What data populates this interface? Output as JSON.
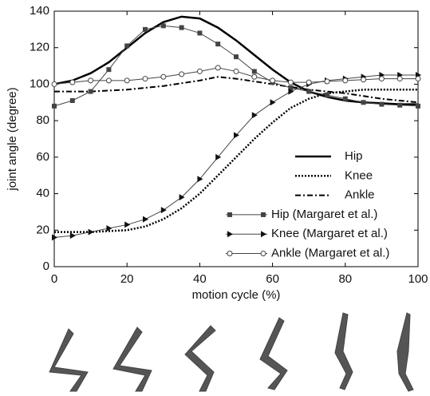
{
  "chart_data": {
    "type": "line",
    "xlabel": "motion cycle (%)",
    "ylabel": "joint angle (degree)",
    "x": [
      0,
      5,
      10,
      15,
      20,
      25,
      30,
      35,
      40,
      45,
      50,
      55,
      60,
      65,
      70,
      75,
      80,
      85,
      90,
      95,
      100
    ],
    "xlim": [
      0,
      100
    ],
    "xticks": [
      0,
      20,
      40,
      60,
      80,
      100
    ],
    "ylim": [
      0,
      140
    ],
    "yticks": [
      0,
      20,
      40,
      60,
      80,
      100,
      120,
      140
    ],
    "grid": false,
    "legend": "lower right",
    "series": [
      {
        "name": "Hip",
        "color": "#000000",
        "style": "solid",
        "width": 2.5,
        "marker": "none",
        "values": [
          100,
          102,
          106,
          112,
          120,
          128,
          134,
          137,
          136,
          131,
          124,
          116,
          108,
          101,
          96,
          93,
          91,
          90,
          89.5,
          89,
          89
        ]
      },
      {
        "name": "Knee",
        "color": "#000000",
        "style": "dotted",
        "width": 2.5,
        "marker": "none",
        "values": [
          19,
          19,
          19,
          19.5,
          20,
          22,
          26,
          32,
          40,
          50,
          60,
          70,
          79,
          87,
          92,
          95,
          96,
          97,
          97,
          97,
          97
        ]
      },
      {
        "name": "Ankle",
        "color": "#000000",
        "style": "dashdot",
        "width": 2,
        "marker": "none",
        "values": [
          96,
          96,
          96,
          96.5,
          97,
          98,
          99,
          100.5,
          102,
          104,
          103,
          101.5,
          100,
          98.5,
          97,
          96,
          95,
          93.5,
          92,
          91,
          90
        ]
      },
      {
        "name": "Hip (Margaret et al.)",
        "color": "#444444",
        "style": "solid",
        "width": 1,
        "marker": "square",
        "values": [
          88,
          91,
          96,
          108,
          121,
          130,
          132,
          131,
          128,
          122,
          115,
          107,
          101,
          98,
          96,
          94,
          92,
          90,
          89,
          88.5,
          88
        ]
      },
      {
        "name": "Knee (Margaret et al.)",
        "color": "#444444",
        "style": "solid",
        "width": 1,
        "marker": "triangle",
        "values": [
          16,
          17,
          19,
          21,
          23,
          26,
          31,
          38,
          48,
          60,
          72,
          83,
          90,
          96,
          100,
          102,
          103,
          104,
          105,
          105,
          105
        ]
      },
      {
        "name": "Ankle (Margaret et al.)",
        "color": "#444444",
        "style": "solid",
        "width": 1,
        "marker": "circle",
        "values": [
          100,
          101,
          102,
          102,
          102,
          103,
          104,
          105.5,
          107,
          109,
          107,
          104,
          102,
          101,
          101,
          101.5,
          102,
          102.5,
          103,
          103,
          103
        ]
      }
    ]
  }
}
